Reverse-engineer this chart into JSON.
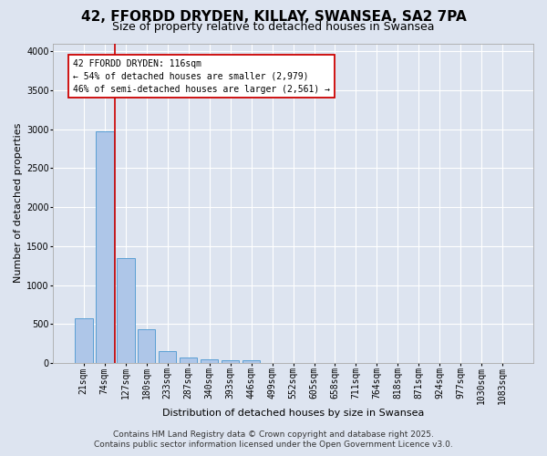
{
  "title_line1": "42, FFORDD DRYDEN, KILLAY, SWANSEA, SA2 7PA",
  "title_line2": "Size of property relative to detached houses in Swansea",
  "xlabel": "Distribution of detached houses by size in Swansea",
  "ylabel": "Number of detached properties",
  "footer_line1": "Contains HM Land Registry data © Crown copyright and database right 2025.",
  "footer_line2": "Contains public sector information licensed under the Open Government Licence v3.0.",
  "bin_labels": [
    "21sqm",
    "74sqm",
    "127sqm",
    "180sqm",
    "233sqm",
    "287sqm",
    "340sqm",
    "393sqm",
    "446sqm",
    "499sqm",
    "552sqm",
    "605sqm",
    "658sqm",
    "711sqm",
    "764sqm",
    "818sqm",
    "871sqm",
    "924sqm",
    "977sqm",
    "1030sqm",
    "1083sqm"
  ],
  "bar_values": [
    570,
    2970,
    1340,
    430,
    150,
    75,
    50,
    40,
    30,
    0,
    0,
    0,
    0,
    0,
    0,
    0,
    0,
    0,
    0,
    0,
    0
  ],
  "bar_color": "#aec6e8",
  "bar_edge_color": "#5a9fd4",
  "background_color": "#dde4f0",
  "grid_color": "#ffffff",
  "ylim": [
    0,
    4100
  ],
  "yticks": [
    0,
    500,
    1000,
    1500,
    2000,
    2500,
    3000,
    3500,
    4000
  ],
  "property_label": "42 FFORDD DRYDEN: 116sqm",
  "annotation_line1": "← 54% of detached houses are smaller (2,979)",
  "annotation_line2": "46% of semi-detached houses are larger (2,561) →",
  "vline_color": "#cc0000",
  "annotation_box_color": "#ffffff",
  "annotation_box_edge": "#cc0000",
  "title_fontsize": 11,
  "subtitle_fontsize": 9,
  "axis_label_fontsize": 8,
  "tick_fontsize": 7,
  "annotation_fontsize": 7,
  "footer_fontsize": 6.5
}
